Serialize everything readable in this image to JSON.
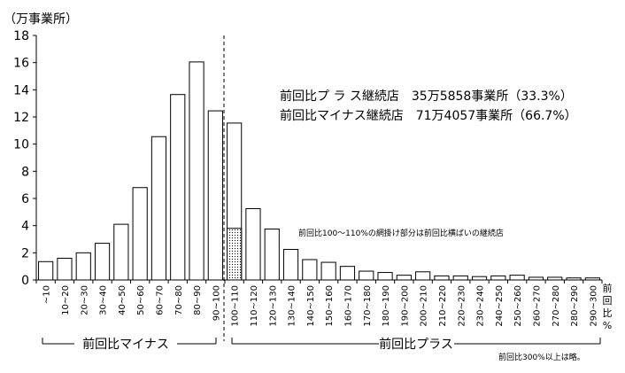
{
  "chart_data": {
    "type": "bar",
    "ylabel": "（万事業所）",
    "xlabel": "前回比%",
    "ylim": [
      0,
      18
    ],
    "yticks": [
      0,
      2,
      4,
      6,
      8,
      10,
      12,
      14,
      16,
      18
    ],
    "grid": false,
    "categories": [
      "~10",
      "10~20",
      "20~30",
      "30~40",
      "40~50",
      "50~60",
      "60~70",
      "70~80",
      "80~90",
      "90~100",
      "100~110",
      "110~120",
      "120~130",
      "130~140",
      "140~150",
      "150~160",
      "160~170",
      "170~180",
      "180~190",
      "190~200",
      "200~210",
      "210~220",
      "220~230",
      "230~240",
      "240~250",
      "250~260",
      "260~270",
      "270~280",
      "280~290",
      "290~300"
    ],
    "values": [
      1.35,
      1.6,
      2.0,
      2.7,
      4.1,
      6.8,
      10.55,
      13.65,
      16.05,
      12.45,
      11.55,
      5.25,
      3.75,
      2.25,
      1.5,
      1.3,
      1.0,
      0.65,
      0.55,
      0.35,
      0.6,
      0.3,
      0.3,
      0.25,
      0.3,
      0.35,
      0.2,
      0.2,
      0.15,
      0.15
    ],
    "hatched_portion": {
      "category": "100~110",
      "value": 3.8
    },
    "group_labels": {
      "minus": "前回比マイナス",
      "plus": "前回比プラス"
    },
    "summary_lines": [
      "前回比プ ラ ス継続店　35万5858事業所（33.3%）",
      "前回比マイナス継続店　71万4057事業所（66.7%）"
    ],
    "annotation": "前回比100～110%の網掛け部分は前回比横ばいの継続店",
    "footnote": "前回比300%以上は略。",
    "xaxis_end_label": [
      "前",
      "回",
      "比",
      "%"
    ]
  }
}
